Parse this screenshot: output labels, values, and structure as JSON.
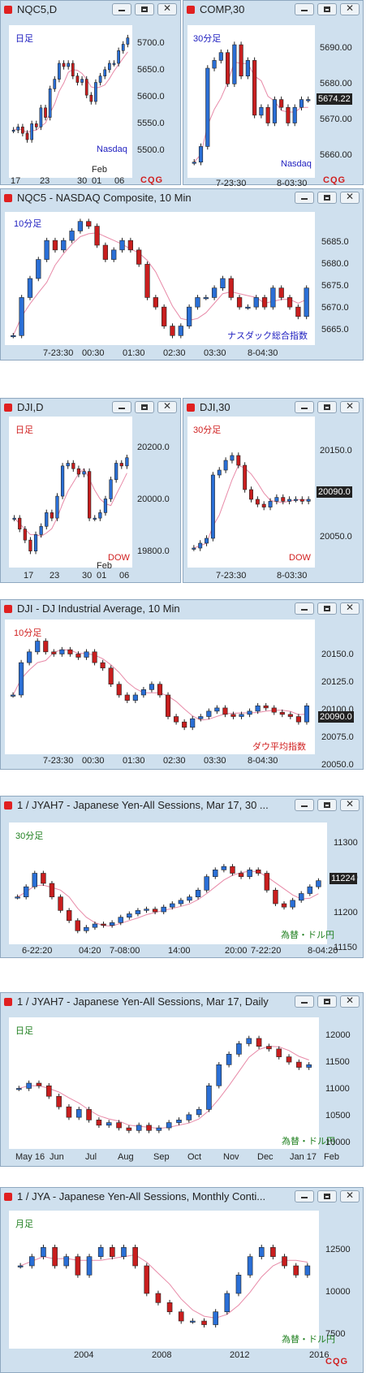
{
  "panels": [
    {
      "id": "nqc5d",
      "title": "NQC5,D",
      "label": "日足",
      "label_color": "#2020c0",
      "source": "Nasdaq",
      "source_color": "#2020c0",
      "last_price": "",
      "y_ticks": [
        "5700.0",
        "5650.0",
        "5600.0",
        "5550.0",
        "5500.0"
      ],
      "x_ticks": [
        "17",
        "23",
        "30",
        "01",
        "06"
      ],
      "x_sub": "Feb",
      "footer": "CQG"
    },
    {
      "id": "comp30",
      "title": "COMP,30",
      "label": "30分足",
      "label_color": "#2020c0",
      "source": "Nasdaq",
      "source_color": "#2020c0",
      "last_price": "5674.22",
      "y_ticks": [
        "5690.00",
        "5680.00",
        "5670.00",
        "5660.00"
      ],
      "x_ticks": [
        "7-23:30",
        "8-03:30"
      ],
      "x_sub": "",
      "footer": "CQG"
    },
    {
      "id": "nqc5m10",
      "title": "NQC5 - NASDAQ Composite, 10 Min",
      "label": "10分足",
      "label_color": "#2020c0",
      "source": "ナスダック総合指数",
      "source_color": "#2020c0",
      "last_price": "",
      "y_ticks": [
        "5685.0",
        "5680.0",
        "5675.0",
        "5670.0",
        "5665.0"
      ],
      "x_ticks": [
        "7-23:30",
        "00:30",
        "01:30",
        "02:30",
        "03:30",
        "8-04:30"
      ],
      "x_sub": "",
      "footer": ""
    },
    {
      "id": "djid",
      "title": "DJI,D",
      "label": "日足",
      "label_color": "#d02020",
      "source": "DOW",
      "source_color": "#d02020",
      "last_price": "",
      "y_ticks": [
        "20200.0",
        "20000.0",
        "19800.0"
      ],
      "x_ticks": [
        "17",
        "23",
        "30",
        "01",
        "06"
      ],
      "x_sub": "Feb",
      "footer": ""
    },
    {
      "id": "dji30",
      "title": "DJI,30",
      "label": "30分足",
      "label_color": "#d02020",
      "source": "DOW",
      "source_color": "#d02020",
      "last_price": "20090.0",
      "y_ticks": [
        "20150.0",
        "20100.0",
        "20050.0"
      ],
      "x_ticks": [
        "7-23:30",
        "8-03:30"
      ],
      "x_sub": "",
      "footer": ""
    },
    {
      "id": "djim10",
      "title": "DJI - DJ Industrial Average, 10 Min",
      "label": "10分足",
      "label_color": "#d02020",
      "source": "ダウ平均指数",
      "source_color": "#d02020",
      "last_price": "20090.0",
      "y_ticks": [
        "20150.0",
        "20125.0",
        "20100.0",
        "20075.0",
        "20050.0"
      ],
      "x_ticks": [
        "7-23:30",
        "00:30",
        "01:30",
        "02:30",
        "03:30",
        "8-04:30"
      ],
      "x_sub": "",
      "footer": ""
    },
    {
      "id": "jyah7m30",
      "title": "1 / JYAH7 - Japanese Yen-All Sessions, Mar 17, 30 ...",
      "label": "30分足",
      "label_color": "#208020",
      "source": "為替・ドル円",
      "source_color": "#208020",
      "last_price": "11224",
      "y_ticks": [
        "11300",
        "11250",
        "11200",
        "11150"
      ],
      "x_ticks": [
        "6-22:20",
        "04:20",
        "7-08:00",
        "14:00",
        "20:00",
        "7-22:20",
        "8-04:20"
      ],
      "x_sub": "",
      "footer": ""
    },
    {
      "id": "jyah7d",
      "title": "1 / JYAH7 - Japanese Yen-All Sessions, Mar 17, Daily",
      "label": "日足",
      "label_color": "#208020",
      "source": "為替・ドル円",
      "source_color": "#208020",
      "last_price": "",
      "y_ticks": [
        "12000",
        "11500",
        "11000",
        "10500",
        "10000"
      ],
      "x_ticks": [
        "May 16",
        "Jun",
        "Jul",
        "Aug",
        "Sep",
        "Oct",
        "Nov",
        "Dec",
        "Jan 17",
        "Feb"
      ],
      "x_sub": "",
      "footer": ""
    },
    {
      "id": "jyam",
      "title": "1 / JYA - Japanese Yen-All Sessions, Monthly Conti...",
      "label": "月足",
      "label_color": "#208020",
      "source": "為替・ドル円",
      "source_color": "#208020",
      "last_price": "",
      "y_ticks": [
        "12500",
        "10000",
        "7500"
      ],
      "x_ticks": [
        "2004",
        "2008",
        "2012",
        "2016"
      ],
      "x_sub": "",
      "footer": "CQG"
    }
  ],
  "chart_data": [
    {
      "panel": "nqc5d",
      "type": "candlestick",
      "ylim": [
        5480,
        5720
      ],
      "closes": [
        5555,
        5560,
        5550,
        5540,
        5565,
        5560,
        5590,
        5575,
        5620,
        5635,
        5660,
        5655,
        5660,
        5640,
        5630,
        5635,
        5610,
        5600,
        5630,
        5640,
        5650,
        5660,
        5660,
        5680,
        5690,
        5700
      ]
    },
    {
      "panel": "comp30",
      "type": "candlestick",
      "ylim": [
        5654,
        5693
      ],
      "closes": [
        5658,
        5662,
        5682,
        5684,
        5686,
        5678,
        5688,
        5680,
        5684,
        5670,
        5672,
        5668,
        5674,
        5672,
        5668,
        5672,
        5674,
        5674
      ]
    },
    {
      "panel": "nqc5m10",
      "type": "candlestick",
      "ylim": [
        5662,
        5690
      ],
      "closes": [
        5664,
        5672,
        5676,
        5680,
        5684,
        5682,
        5684,
        5686,
        5688,
        5687,
        5683,
        5680,
        5682,
        5684,
        5682,
        5679,
        5672,
        5670,
        5666,
        5664,
        5666,
        5670,
        5672,
        5672,
        5674,
        5676,
        5672,
        5670,
        5670,
        5672,
        5670,
        5674,
        5672,
        5670,
        5668,
        5674
      ]
    },
    {
      "panel": "djid",
      "type": "candlestick",
      "ylim": [
        19700,
        20250
      ],
      "closes": [
        19880,
        19840,
        19800,
        19760,
        19820,
        19850,
        19900,
        19880,
        19960,
        20070,
        20080,
        20060,
        20040,
        20050,
        19880,
        19880,
        19900,
        19950,
        20020,
        20080,
        20070,
        20100
      ]
    },
    {
      "panel": "dji30",
      "type": "candlestick",
      "ylim": [
        20020,
        20175
      ],
      "closes": [
        20040,
        20045,
        20050,
        20115,
        20120,
        20130,
        20135,
        20125,
        20100,
        20090,
        20085,
        20082,
        20088,
        20092,
        20088,
        20090,
        20090,
        20088,
        20090
      ]
    },
    {
      "panel": "djim10",
      "type": "candlestick",
      "ylim": [
        20045,
        20170
      ],
      "closes": [
        20100,
        20130,
        20140,
        20150,
        20140,
        20138,
        20142,
        20138,
        20135,
        20140,
        20130,
        20125,
        20110,
        20100,
        20095,
        20100,
        20105,
        20110,
        20100,
        20080,
        20075,
        20070,
        20078,
        20080,
        20085,
        20088,
        20082,
        20080,
        20082,
        20085,
        20090,
        20088,
        20084,
        20082,
        20080,
        20075,
        20090
      ]
    },
    {
      "panel": "jyah7m30",
      "type": "candlestick",
      "ylim": [
        11130,
        11310
      ],
      "closes": [
        11200,
        11215,
        11235,
        11220,
        11200,
        11180,
        11165,
        11150,
        11155,
        11160,
        11158,
        11162,
        11170,
        11175,
        11180,
        11182,
        11178,
        11185,
        11190,
        11195,
        11200,
        11210,
        11230,
        11240,
        11245,
        11235,
        11230,
        11240,
        11235,
        11210,
        11190,
        11185,
        11195,
        11205,
        11215,
        11224
      ]
    },
    {
      "panel": "jyah7d",
      "type": "candlestick",
      "ylim": [
        9700,
        12200
      ],
      "closes": [
        10850,
        10950,
        10900,
        10700,
        10500,
        10300,
        10450,
        10250,
        10150,
        10200,
        10100,
        10050,
        10150,
        10050,
        10100,
        10200,
        10250,
        10350,
        10450,
        10900,
        11300,
        11500,
        11700,
        11800,
        11650,
        11600,
        11450,
        11350,
        11250,
        11300
      ]
    },
    {
      "panel": "jyam",
      "type": "candlestick",
      "ylim": [
        6500,
        14000
      ],
      "closes": [
        11000,
        11500,
        12000,
        11000,
        11500,
        10500,
        11500,
        12000,
        11500,
        12000,
        11000,
        9500,
        9000,
        8500,
        8000,
        8000,
        7800,
        8500,
        9500,
        10500,
        11500,
        12000,
        11500,
        11000,
        10500,
        11000
      ]
    }
  ]
}
